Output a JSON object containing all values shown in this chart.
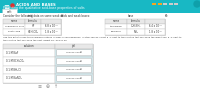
{
  "bg_color": "#18b8c4",
  "header_text": "ACIDS AND BASES",
  "subheader_text": "Predicting the qualitative acid-base properties of salts",
  "tab_text": "salt",
  "consider_text": "Consider the following data on some weak acids and weak bases:",
  "acid_col_headers": [
    "name",
    "formula",
    "Ka"
  ],
  "base_col_headers": [
    "name",
    "formula",
    "Kb"
  ],
  "acid_rows": [
    [
      "hydrofluoric acid",
      "HF",
      "6.8 x 10⁻⁴"
    ],
    [
      "acetic acid",
      "HCH₃CO₂",
      "1.8 x 10⁻⁵"
    ]
  ],
  "base_rows": [
    [
      "ethylamine",
      "C₂H₅NH₂",
      "6.4 x 10⁻⁴"
    ],
    [
      "ammonia",
      "NH₃",
      "1.8 x 10⁻⁵"
    ]
  ],
  "rank_text1": "Use this data to rank the following solutions in order of increasing pH. In other words, select a '1' next to the solution that will have the lowest pH, a '2' next to",
  "rank_text2": "the solution that will have the next lowest pH, and so on.",
  "solutions": [
    "0.1 M NaF",
    "0.1 M KCH₃CO₂",
    "0.1 M NH₄Cl",
    "0.1 M NaNO₃"
  ],
  "sol_header": "solution",
  "ph_header": "pH",
  "dropdown_text": "choose one♥",
  "progress_colors": [
    "#f5a623",
    "#f5a623",
    "#cccccc",
    "#cccccc",
    "#cccccc"
  ],
  "header_gray": "#e8e8e8",
  "table_border": "#bbbbbb",
  "cell_bg": "#ffffff",
  "dropdown_bg": "#d6edf2",
  "body_bg": "#ffffff",
  "icon_color": "#888888",
  "text_dark": "#333333",
  "text_white": "#ffffff",
  "red_dot": "#dd3333"
}
